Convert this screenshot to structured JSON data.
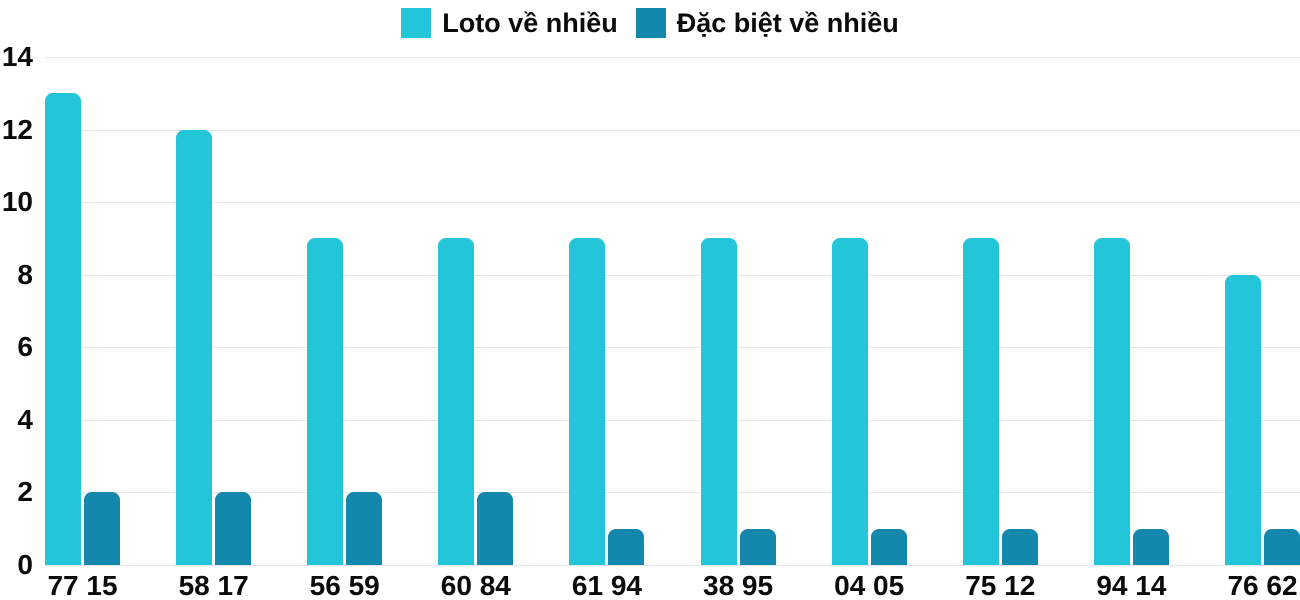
{
  "chart_data": {
    "type": "bar",
    "title": "",
    "categories": [
      "77 15",
      "58 17",
      "56 59",
      "60 84",
      "61 94",
      "38 95",
      "04 05",
      "75 12",
      "94 14",
      "76 62"
    ],
    "series": [
      {
        "name": "Loto về nhiều",
        "color": "#23C5D8",
        "values": [
          13,
          12,
          9,
          9,
          9,
          9,
          9,
          9,
          9,
          8
        ]
      },
      {
        "name": "Đặc biệt về nhiều",
        "color": "#1487AD",
        "values": [
          2,
          2,
          2,
          2,
          1,
          1,
          1,
          1,
          1,
          1
        ]
      }
    ],
    "xlabel": "",
    "ylabel": "",
    "ylim": [
      0,
      14
    ],
    "yticks": [
      0,
      2,
      4,
      6,
      8,
      10,
      12,
      14
    ],
    "grid": true,
    "legend_position": "top",
    "gridline_color": "#e6e6e6",
    "text_color": "#0b0b0b",
    "background_color": "#ffffff"
  }
}
